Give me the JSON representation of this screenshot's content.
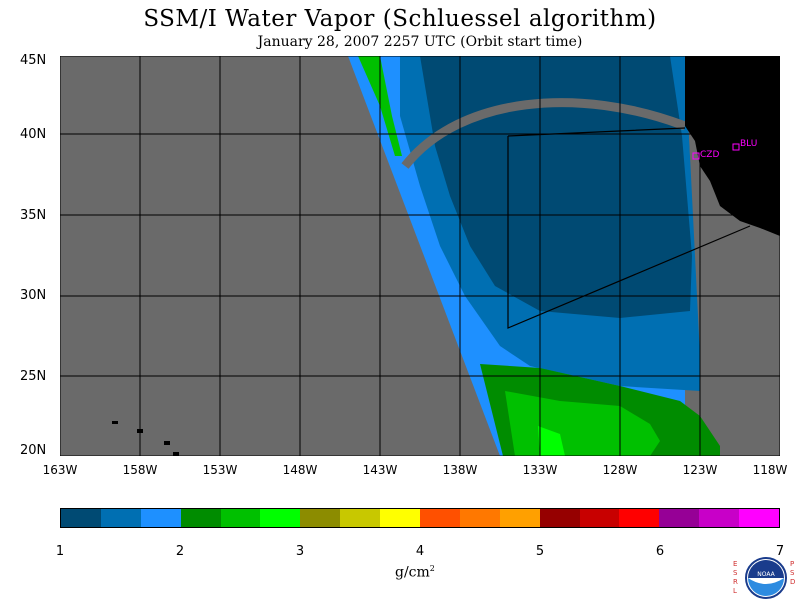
{
  "title": "SSM/I Water Vapor (Schluessel algorithm)",
  "subtitle": "January 28, 2007  2257 UTC  (Orbit start time)",
  "map": {
    "lat_labels": [
      "45N",
      "40N",
      "35N",
      "30N",
      "25N",
      "20N"
    ],
    "lon_labels": [
      "163W",
      "158W",
      "153W",
      "148W",
      "143W",
      "138W",
      "133W",
      "128W",
      "123W",
      "118W"
    ],
    "stations": [
      {
        "code": "CZD",
        "color": "#ff00ff"
      },
      {
        "code": "BLU",
        "color": "#ff00ff"
      }
    ],
    "background_color": "#6a6a6a",
    "land_color": "#000000"
  },
  "colorbar": {
    "colors": [
      "#004a73",
      "#006fb2",
      "#1e90ff",
      "#008c00",
      "#00c000",
      "#00ff00",
      "#8c8c00",
      "#c8c800",
      "#ffff00",
      "#ff5000",
      "#ff7800",
      "#ffa000",
      "#960000",
      "#c80000",
      "#ff0000",
      "#960096",
      "#c800c8",
      "#ff00ff"
    ],
    "tick_labels": [
      "1",
      "2",
      "3",
      "4",
      "5",
      "6",
      "7"
    ],
    "unit_label": "g/cm",
    "unit_sup": "2"
  },
  "logo": {
    "org_left": "ESRL",
    "org_right": "PSD",
    "seal_text": "NOAA"
  }
}
